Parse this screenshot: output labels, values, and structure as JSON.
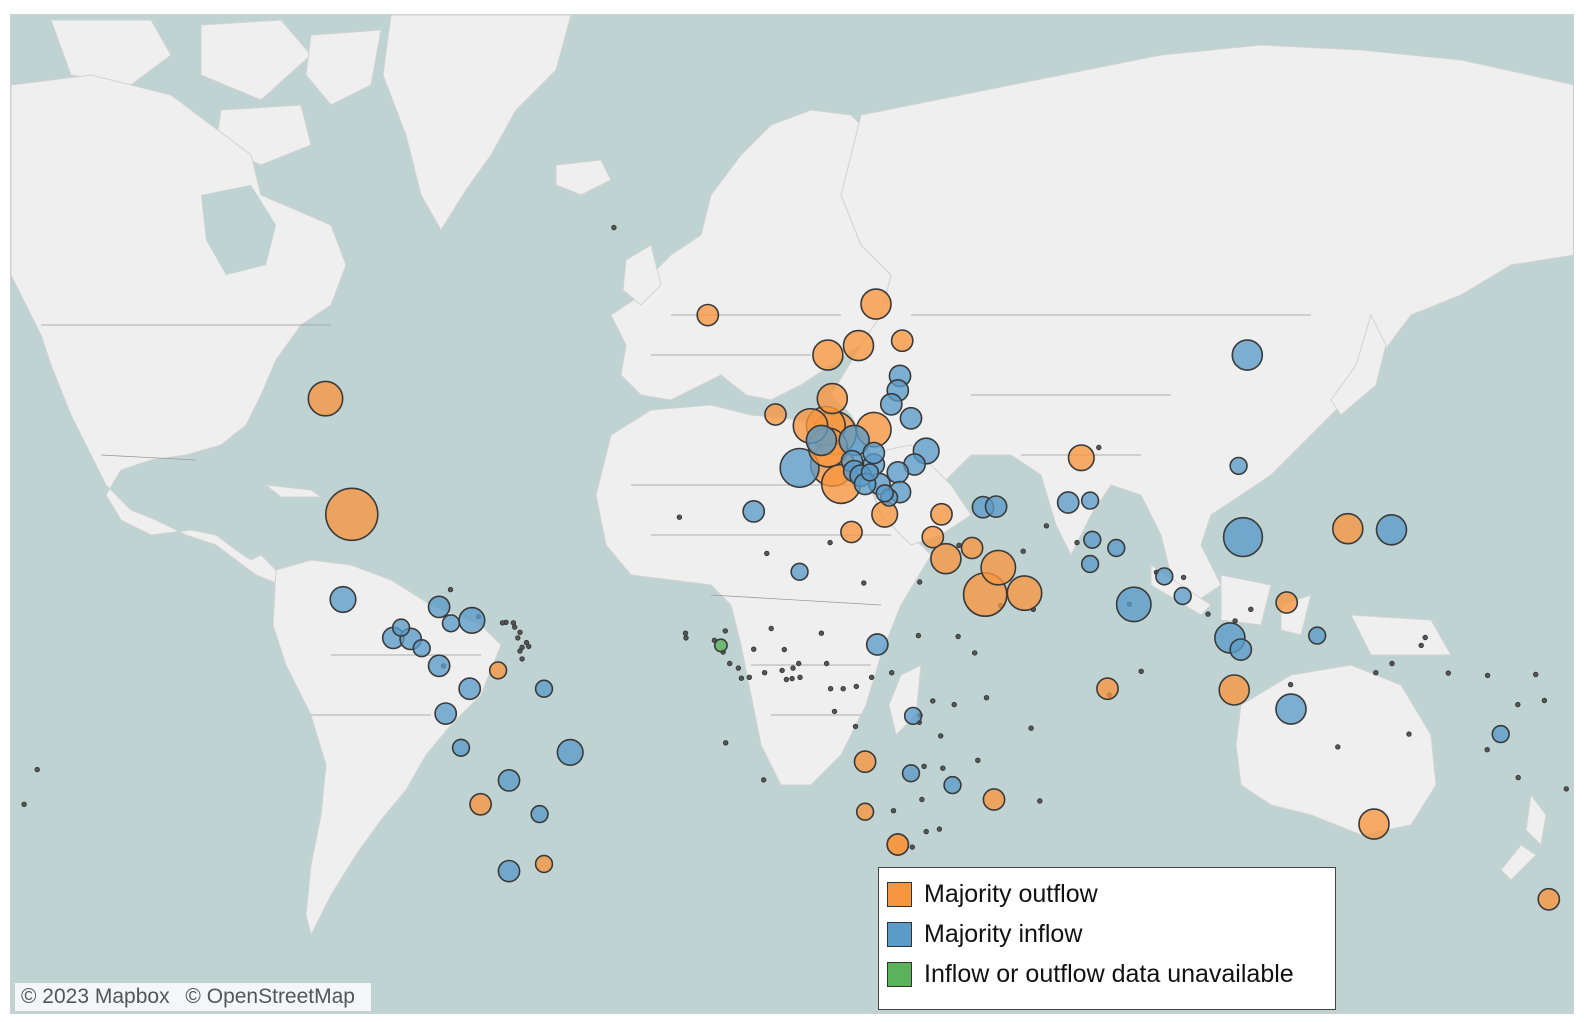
{
  "colors": {
    "outflow": "#f7963f",
    "inflow": "#5b9bc8",
    "unavailable": "#5ab25a",
    "water": "#bfd3d2",
    "land": "#efefef"
  },
  "legend": {
    "items": [
      {
        "key": "outflow",
        "label": "Majority outflow",
        "color": "#f7963f"
      },
      {
        "key": "inflow",
        "label": "Majority inflow",
        "color": "#5b9bc8"
      },
      {
        "key": "unavailable",
        "label": "Inflow or outflow data unavailable",
        "color": "#5ab25a"
      }
    ]
  },
  "attribution": {
    "mapbox": "© 2023 Mapbox",
    "osm": "© OpenStreetMap"
  },
  "markers": [
    {
      "lon": -100,
      "lat": 39,
      "cat": "outflow",
      "size": 10
    },
    {
      "lon": -106,
      "lat": 56,
      "cat": "outflow",
      "size": 6
    },
    {
      "lon": -102,
      "lat": 23,
      "cat": "inflow",
      "size": 4
    },
    {
      "lon": -18.5,
      "lat": 65,
      "cat": "outflow",
      "size": 3
    },
    {
      "lon": -3,
      "lat": 54,
      "cat": "outflow",
      "size": 3
    },
    {
      "lon": 2.5,
      "lat": 46.5,
      "cat": "inflow",
      "size": 7
    },
    {
      "lon": -8,
      "lat": 39.5,
      "cat": "inflow",
      "size": 3
    },
    {
      "lon": 5,
      "lat": 52.5,
      "cat": "outflow",
      "size": 6
    },
    {
      "lon": 8.5,
      "lat": 52.5,
      "cat": "outflow",
      "size": 7
    },
    {
      "lon": 10.5,
      "lat": 51.5,
      "cat": "outflow",
      "size": 8
    },
    {
      "lon": 9,
      "lat": 49.5,
      "cat": "outflow",
      "size": 7
    },
    {
      "lon": 7.5,
      "lat": 50.5,
      "cat": "inflow",
      "size": 5
    },
    {
      "lon": 10,
      "lat": 47,
      "cat": "outflow",
      "size": 8
    },
    {
      "lon": 12,
      "lat": 44,
      "cat": "outflow",
      "size": 7
    },
    {
      "lon": 19.5,
      "lat": 52,
      "cat": "outflow",
      "size": 6
    },
    {
      "lon": 15,
      "lat": 50.5,
      "cat": "inflow",
      "size": 5
    },
    {
      "lon": 16,
      "lat": 62,
      "cat": "outflow",
      "size": 5
    },
    {
      "lon": 9,
      "lat": 61,
      "cat": "outflow",
      "size": 5
    },
    {
      "lon": 10,
      "lat": 56,
      "cat": "outflow",
      "size": 5
    },
    {
      "lon": 20,
      "lat": 66,
      "cat": "outflow",
      "size": 5
    },
    {
      "lon": 26,
      "lat": 62.5,
      "cat": "outflow",
      "size": 3
    },
    {
      "lon": 25.5,
      "lat": 58.7,
      "cat": "inflow",
      "size": 3
    },
    {
      "lon": 25,
      "lat": 57,
      "cat": "inflow",
      "size": 3
    },
    {
      "lon": 23.5,
      "lat": 55.3,
      "cat": "inflow",
      "size": 3
    },
    {
      "lon": 28,
      "lat": 53.5,
      "cat": "inflow",
      "size": 3
    },
    {
      "lon": 31.5,
      "lat": 49,
      "cat": "inflow",
      "size": 4
    },
    {
      "lon": 28.8,
      "lat": 47,
      "cat": "inflow",
      "size": 3
    },
    {
      "lon": 25,
      "lat": 45.8,
      "cat": "inflow",
      "size": 3
    },
    {
      "lon": 19.5,
      "lat": 47,
      "cat": "inflow",
      "size": 3
    },
    {
      "lon": 19.5,
      "lat": 48.7,
      "cat": "inflow",
      "size": 3
    },
    {
      "lon": 14.5,
      "lat": 47.5,
      "cat": "inflow",
      "size": 3
    },
    {
      "lon": 15,
      "lat": 46,
      "cat": "inflow",
      "size": 3
    },
    {
      "lon": 16.5,
      "lat": 45.3,
      "cat": "inflow",
      "size": 3
    },
    {
      "lon": 20.8,
      "lat": 44,
      "cat": "inflow",
      "size": 3
    },
    {
      "lon": 17.5,
      "lat": 44,
      "cat": "inflow",
      "size": 3
    },
    {
      "lon": 25.5,
      "lat": 42.7,
      "cat": "inflow",
      "size": 3
    },
    {
      "lon": 22,
      "lat": 39,
      "cat": "outflow",
      "size": 4
    },
    {
      "lon": 14.4,
      "lat": 35.9,
      "cat": "outflow",
      "size": 3
    },
    {
      "lon": 35,
      "lat": 39,
      "cat": "outflow",
      "size": 3
    },
    {
      "lon": 33,
      "lat": 35,
      "cat": "outflow",
      "size": 3
    },
    {
      "lon": 44.5,
      "lat": 40.2,
      "cat": "inflow",
      "size": 3
    },
    {
      "lon": 47.5,
      "lat": 40.3,
      "cat": "inflow",
      "size": 3
    },
    {
      "lon": 36,
      "lat": 31,
      "cat": "outflow",
      "size": 5
    },
    {
      "lon": 45,
      "lat": 24,
      "cat": "outflow",
      "size": 8
    },
    {
      "lon": 48,
      "lat": 29.3,
      "cat": "outflow",
      "size": 6
    },
    {
      "lon": 54,
      "lat": 24.3,
      "cat": "outflow",
      "size": 6
    },
    {
      "lon": 67,
      "lat": 48,
      "cat": "outflow",
      "size": 4
    },
    {
      "lon": 64,
      "lat": 41,
      "cat": "inflow",
      "size": 3
    },
    {
      "lon": 69.5,
      "lat": 34.5,
      "cat": "inflow",
      "size": 2
    },
    {
      "lon": 69,
      "lat": 30,
      "cat": "inflow",
      "size": 2
    },
    {
      "lon": 79,
      "lat": 22,
      "cat": "inflow",
      "size": 6
    },
    {
      "lon": 104,
      "lat": 35,
      "cat": "inflow",
      "size": 7
    },
    {
      "lon": 105,
      "lat": 61,
      "cat": "inflow",
      "size": 5
    },
    {
      "lon": 103,
      "lat": 46.8,
      "cat": "inflow",
      "size": 2
    },
    {
      "lon": 128,
      "lat": 36.5,
      "cat": "outflow",
      "size": 5
    },
    {
      "lon": 138,
      "lat": 36.3,
      "cat": "inflow",
      "size": 5
    },
    {
      "lon": 114,
      "lat": 22.4,
      "cat": "outflow",
      "size": 3
    },
    {
      "lon": 101,
      "lat": 15,
      "cat": "inflow",
      "size": 5
    },
    {
      "lon": 103.5,
      "lat": 12.5,
      "cat": "inflow",
      "size": 3
    },
    {
      "lon": 102,
      "lat": 3.7,
      "cat": "outflow",
      "size": 5
    },
    {
      "lon": 115,
      "lat": -0.5,
      "cat": "inflow",
      "size": 5
    },
    {
      "lon": 121,
      "lat": 15.5,
      "cat": "inflow",
      "size": 2
    },
    {
      "lon": 134,
      "lat": -25,
      "cat": "outflow",
      "size": 5
    },
    {
      "lon": 174,
      "lat": -39,
      "cat": "outflow",
      "size": 3
    },
    {
      "lon": 47,
      "lat": -20,
      "cat": "outflow",
      "size": 3
    },
    {
      "lon": 73,
      "lat": 4,
      "cat": "outflow",
      "size": 3
    },
    {
      "lon": 25,
      "lat": -29,
      "cat": "outflow",
      "size": 3
    },
    {
      "lon": 17.5,
      "lat": -12,
      "cat": "outflow",
      "size": 3
    },
    {
      "lon": 17.5,
      "lat": -22.5,
      "cat": "outflow",
      "size": 2
    },
    {
      "lon": 28,
      "lat": -14.5,
      "cat": "inflow",
      "size": 2
    },
    {
      "lon": 37.5,
      "lat": -17,
      "cat": "inflow",
      "size": 2
    },
    {
      "lon": 28.5,
      "lat": -2,
      "cat": "inflow",
      "size": 2
    },
    {
      "lon": 20.3,
      "lat": 13.6,
      "cat": "inflow",
      "size": 3
    },
    {
      "lon": 2.5,
      "lat": 28.5,
      "cat": "inflow",
      "size": 2
    },
    {
      "lon": -50,
      "lat": -10,
      "cat": "inflow",
      "size": 4
    },
    {
      "lon": -64,
      "lat": -34,
      "cat": "inflow",
      "size": 3
    },
    {
      "lon": -56,
      "lat": -32.7,
      "cat": "outflow",
      "size": 2
    },
    {
      "lon": -70.5,
      "lat": -21,
      "cat": "outflow",
      "size": 3
    },
    {
      "lon": -75,
      "lat": -9,
      "cat": "inflow",
      "size": 2
    },
    {
      "lon": -78.5,
      "lat": -1.5,
      "cat": "inflow",
      "size": 3
    },
    {
      "lon": -73,
      "lat": 4,
      "cat": "inflow",
      "size": 3
    },
    {
      "lon": -64,
      "lat": -16,
      "cat": "inflow",
      "size": 3
    },
    {
      "lon": -57,
      "lat": -23,
      "cat": "inflow",
      "size": 2
    },
    {
      "lon": -66.5,
      "lat": 8,
      "cat": "outflow",
      "size": 2
    },
    {
      "lon": -80,
      "lat": 9,
      "cat": "inflow",
      "size": 3
    },
    {
      "lon": -90.5,
      "lat": 15,
      "cat": "inflow",
      "size": 3
    },
    {
      "lon": -86.5,
      "lat": 14.8,
      "cat": "inflow",
      "size": 3
    },
    {
      "lon": -84,
      "lat": 12.8,
      "cat": "inflow",
      "size": 2
    },
    {
      "lon": -80,
      "lat": 21.5,
      "cat": "inflow",
      "size": 3
    },
    {
      "lon": -72.5,
      "lat": 18.7,
      "cat": "inflow",
      "size": 4
    },
    {
      "lon": -77.3,
      "lat": 18.1,
      "cat": "inflow",
      "size": 2
    },
    {
      "lon": -88.7,
      "lat": 17.2,
      "cat": "inflow",
      "size": 2
    },
    {
      "lon": -56,
      "lat": 4,
      "cat": "inflow",
      "size": 2
    },
    {
      "lon": 69,
      "lat": 41.3,
      "cat": "inflow",
      "size": 2
    },
    {
      "lon": 75,
      "lat": 33,
      "cat": "inflow",
      "size": 2
    },
    {
      "lon": 86,
      "lat": 27.6,
      "cat": "inflow",
      "size": 2
    },
    {
      "lon": 90.2,
      "lat": 23.7,
      "cat": "inflow",
      "size": 2
    },
    {
      "lon": 163,
      "lat": -6,
      "cat": "inflow",
      "size": 2
    },
    {
      "lon": 25,
      "lat": -29,
      "cat": "outflow",
      "size": 3
    },
    {
      "lon": 42,
      "lat": 33,
      "cat": "outflow",
      "size": 3
    },
    {
      "lon": 23,
      "lat": 41.8,
      "cat": "inflow",
      "size": 2
    },
    {
      "lon": 18.6,
      "lat": 45.8,
      "cat": "inflow",
      "size": 2
    },
    {
      "lon": 22,
      "lat": 42.5,
      "cat": "inflow",
      "size": 2
    },
    {
      "lon": -15.5,
      "lat": 13.4,
      "cat": "unavailable",
      "size": 1
    }
  ],
  "small_dots": [
    [
      -40,
      72
    ],
    [
      -25,
      38.5
    ],
    [
      -23.5,
      15
    ],
    [
      -60,
      14
    ],
    [
      -61,
      13
    ],
    [
      -62,
      15
    ],
    [
      -61.5,
      12.2
    ],
    [
      -62.7,
      17.3
    ],
    [
      -63,
      18.2
    ],
    [
      -64.7,
      18.3
    ],
    [
      -65.5,
      18.2
    ],
    [
      -61.5,
      16.2
    ],
    [
      -61,
      10.5
    ],
    [
      -59.5,
      13.2
    ],
    [
      -77.4,
      25.0
    ],
    [
      -71,
      19.5
    ],
    [
      -79,
      9
    ],
    [
      -13.5,
      9.5
    ],
    [
      -11.5,
      8.5
    ],
    [
      -9,
      6.5
    ],
    [
      -5.5,
      7.5
    ],
    [
      -1.5,
      8
    ],
    [
      1,
      8.5
    ],
    [
      2.3,
      9.5
    ],
    [
      8.7,
      9.5
    ],
    [
      12.5,
      4
    ],
    [
      10.5,
      -1
    ],
    [
      15.3,
      -4.3
    ],
    [
      15.5,
      4.5
    ],
    [
      19,
      6.5
    ],
    [
      23.6,
      7.5
    ],
    [
      29.7,
      15.5
    ],
    [
      38.8,
      15.3
    ],
    [
      42.6,
      11.8
    ],
    [
      45.3,
      2.0
    ],
    [
      37.9,
      0.5
    ],
    [
      33,
      1.3
    ],
    [
      29.9,
      -3.4
    ],
    [
      30.1,
      -1.9
    ],
    [
      34.8,
      -6.4
    ],
    [
      35.3,
      -13.4
    ],
    [
      30.5,
      -20
    ],
    [
      34.5,
      -26
    ],
    [
      31.5,
      -26.5
    ],
    [
      28.3,
      -29.5
    ],
    [
      24,
      -22.3
    ],
    [
      31,
      -13
    ],
    [
      -5,
      32
    ],
    [
      9.5,
      34
    ],
    [
      17.2,
      26.3
    ],
    [
      30,
      26.5
    ],
    [
      39,
      33.5
    ],
    [
      48.5,
      21.8
    ],
    [
      56,
      21
    ],
    [
      53.7,
      32.4
    ],
    [
      59,
      37
    ],
    [
      66,
      34
    ],
    [
      71,
      49.5
    ],
    [
      78,
      22
    ],
    [
      80.7,
      7.8
    ],
    [
      73.4,
      2.6
    ],
    [
      84.2,
      28.4
    ],
    [
      90.4,
      27.4
    ],
    [
      96,
      20
    ],
    [
      105.8,
      21
    ],
    [
      102.2,
      18.6
    ],
    [
      114.9,
      4.9
    ],
    [
      125.7,
      -8.8
    ],
    [
      142,
      -6
    ],
    [
      159.9,
      -9.4
    ],
    [
      167,
      -15.4
    ],
    [
      178,
      -17.8
    ],
    [
      134.4,
      7.5
    ],
    [
      138.1,
      9.5
    ],
    [
      151,
      7.4
    ],
    [
      171,
      7.1
    ],
    [
      160,
      6.9
    ],
    [
      144.8,
      13.4
    ],
    [
      145.7,
      15.1
    ],
    [
      166.9,
      0.5
    ],
    [
      173,
      1.4
    ],
    [
      -175,
      -21
    ],
    [
      -172,
      -13.7
    ],
    [
      55.5,
      -4.7
    ],
    [
      57.5,
      -20.3
    ],
    [
      43.3,
      -11.7
    ],
    [
      -5.7,
      -15.9
    ],
    [
      -14.4,
      -7.9
    ],
    [
      9.6,
      4
    ],
    [
      -23.6,
      16
    ],
    [
      -1,
      12.5
    ],
    [
      -8,
      12.6
    ],
    [
      -4,
      17
    ],
    [
      7.5,
      16
    ],
    [
      -17,
      14.5
    ],
    [
      -15,
      12
    ],
    [
      -14.5,
      16.5
    ],
    [
      2.6,
      6.5
    ],
    [
      0.8,
      6.2
    ],
    [
      -0.5,
      6
    ],
    [
      -10.8,
      6.3
    ]
  ]
}
